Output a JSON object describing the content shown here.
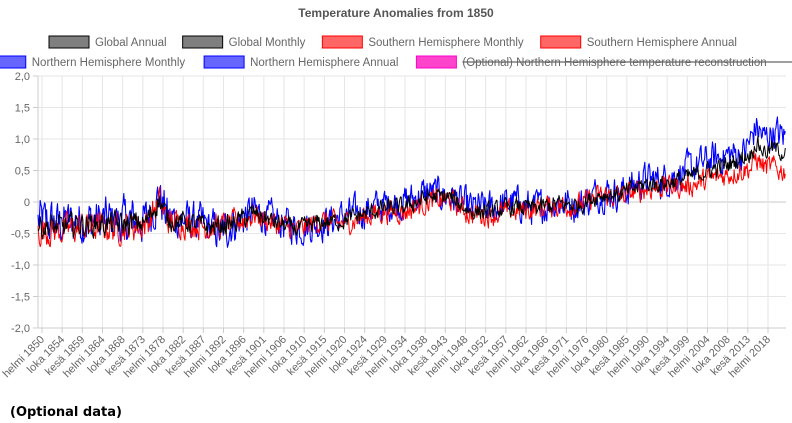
{
  "page": {
    "footer_note": "(Optional data)"
  },
  "chart_data": {
    "type": "line",
    "title": "Temperature Anomalies from 1850",
    "xlabel": "",
    "ylabel": "",
    "ylim": [
      -2.0,
      2.0
    ],
    "yticks": [
      "2,0",
      "1,5",
      "1,0",
      "0,5",
      "0",
      "-0,5",
      "-1,0",
      "-1,5",
      "-2,0"
    ],
    "xlim": [
      "1850-01",
      "2022-12"
    ],
    "xtick_labels": [
      "helmi 1850",
      "loka 1854",
      "kesä 1859",
      "helmi 1864",
      "loka 1868",
      "kesä 1873",
      "helmi 1878",
      "loka 1882",
      "kesä 1887",
      "helmi 1892",
      "loka 1896",
      "kesä 1901",
      "helmi 1906",
      "loka 1910",
      "kesä 1915",
      "helmi 1920",
      "loka 1924",
      "kesä 1929",
      "helmi 1934",
      "loka 1938",
      "kesä 1943",
      "helmi 1948",
      "loka 1952",
      "kesä 1957",
      "helmi 1962",
      "loka 1966",
      "kesä 1971",
      "helmi 1976",
      "loka 1980",
      "kesä 1985",
      "helmi 1990",
      "loka 1994",
      "kesä 1999",
      "helmi 2004",
      "loka 2008",
      "kesä 2013",
      "helmi 2018"
    ],
    "grid": true,
    "legend_position": "top",
    "colors": {
      "global": "#000000",
      "global_fill": "#7f7f7f",
      "southern": "#ff0000",
      "southern_fill": "#ff6666",
      "northern": "#0000ff",
      "northern_fill": "#6666ff",
      "optional": "#ff00cc",
      "optional_fill": "#ff44cc"
    },
    "legend": [
      {
        "name": "Global Annual",
        "key": "global",
        "hidden": false
      },
      {
        "name": "Global Monthly",
        "key": "global",
        "hidden": false
      },
      {
        "name": "Southern Hemisphere Monthly",
        "key": "southern",
        "hidden": false
      },
      {
        "name": "Southern Hemisphere Annual",
        "key": "southern",
        "hidden": false
      },
      {
        "name": "Northern Hemisphere Monthly",
        "key": "northern",
        "hidden": false
      },
      {
        "name": "Northern Hemisphere Annual",
        "key": "northern",
        "hidden": false
      },
      {
        "name": "(Optional) Northern Hemisphere temperature reconstruction",
        "key": "optional",
        "hidden": true
      }
    ],
    "series": [
      {
        "name": "Northern Hemisphere Monthly",
        "key": "northern",
        "x": [
          1850,
          1855,
          1860,
          1865,
          1870,
          1875,
          1878,
          1880,
          1885,
          1890,
          1892,
          1895,
          1900,
          1905,
          1910,
          1915,
          1920,
          1925,
          1930,
          1935,
          1940,
          1945,
          1950,
          1955,
          1960,
          1965,
          1970,
          1975,
          1980,
          1985,
          1990,
          1995,
          2000,
          2005,
          2010,
          2013,
          2015,
          2016,
          2018,
          2020,
          2022
        ],
        "y": [
          -0.3,
          -0.35,
          -0.3,
          -0.3,
          -0.3,
          -0.3,
          0.1,
          -0.25,
          -0.3,
          -0.4,
          -0.5,
          -0.35,
          -0.15,
          -0.3,
          -0.4,
          -0.35,
          -0.25,
          -0.15,
          -0.05,
          0.0,
          0.15,
          0.1,
          -0.1,
          -0.1,
          0.0,
          -0.1,
          0.0,
          -0.05,
          0.15,
          0.15,
          0.35,
          0.35,
          0.5,
          0.65,
          0.75,
          0.75,
          1.0,
          1.2,
          1.0,
          1.1,
          1.05
        ]
      },
      {
        "name": "Southern Hemisphere Monthly",
        "key": "southern",
        "x": [
          1850,
          1855,
          1860,
          1865,
          1870,
          1875,
          1878,
          1880,
          1885,
          1890,
          1895,
          1900,
          1905,
          1910,
          1915,
          1920,
          1925,
          1930,
          1935,
          1940,
          1945,
          1950,
          1955,
          1960,
          1965,
          1970,
          1975,
          1980,
          1985,
          1990,
          1995,
          2000,
          2005,
          2010,
          2015,
          2016,
          2018,
          2020,
          2022
        ],
        "y": [
          -0.45,
          -0.45,
          -0.4,
          -0.4,
          -0.4,
          -0.35,
          0.0,
          -0.3,
          -0.35,
          -0.4,
          -0.35,
          -0.2,
          -0.35,
          -0.45,
          -0.3,
          -0.35,
          -0.25,
          -0.15,
          -0.15,
          0.0,
          0.05,
          -0.2,
          -0.2,
          -0.15,
          -0.1,
          -0.05,
          -0.05,
          0.1,
          0.1,
          0.2,
          0.25,
          0.25,
          0.35,
          0.45,
          0.55,
          0.7,
          0.55,
          0.55,
          0.5
        ]
      },
      {
        "name": "Global Monthly",
        "key": "global",
        "x": [
          1850,
          1855,
          1860,
          1865,
          1870,
          1875,
          1878,
          1880,
          1885,
          1890,
          1895,
          1900,
          1905,
          1910,
          1915,
          1920,
          1925,
          1930,
          1935,
          1940,
          1945,
          1950,
          1955,
          1960,
          1965,
          1970,
          1975,
          1980,
          1985,
          1990,
          1995,
          2000,
          2005,
          2010,
          2015,
          2016,
          2018,
          2020,
          2022
        ],
        "y": [
          -0.38,
          -0.4,
          -0.35,
          -0.35,
          -0.35,
          -0.33,
          0.05,
          -0.28,
          -0.33,
          -0.4,
          -0.35,
          -0.18,
          -0.33,
          -0.43,
          -0.33,
          -0.3,
          -0.2,
          -0.1,
          -0.08,
          0.08,
          0.08,
          -0.15,
          -0.15,
          -0.08,
          -0.1,
          -0.03,
          -0.05,
          0.12,
          0.12,
          0.28,
          0.3,
          0.38,
          0.5,
          0.6,
          0.78,
          0.95,
          0.8,
          0.85,
          0.8
        ]
      }
    ]
  }
}
